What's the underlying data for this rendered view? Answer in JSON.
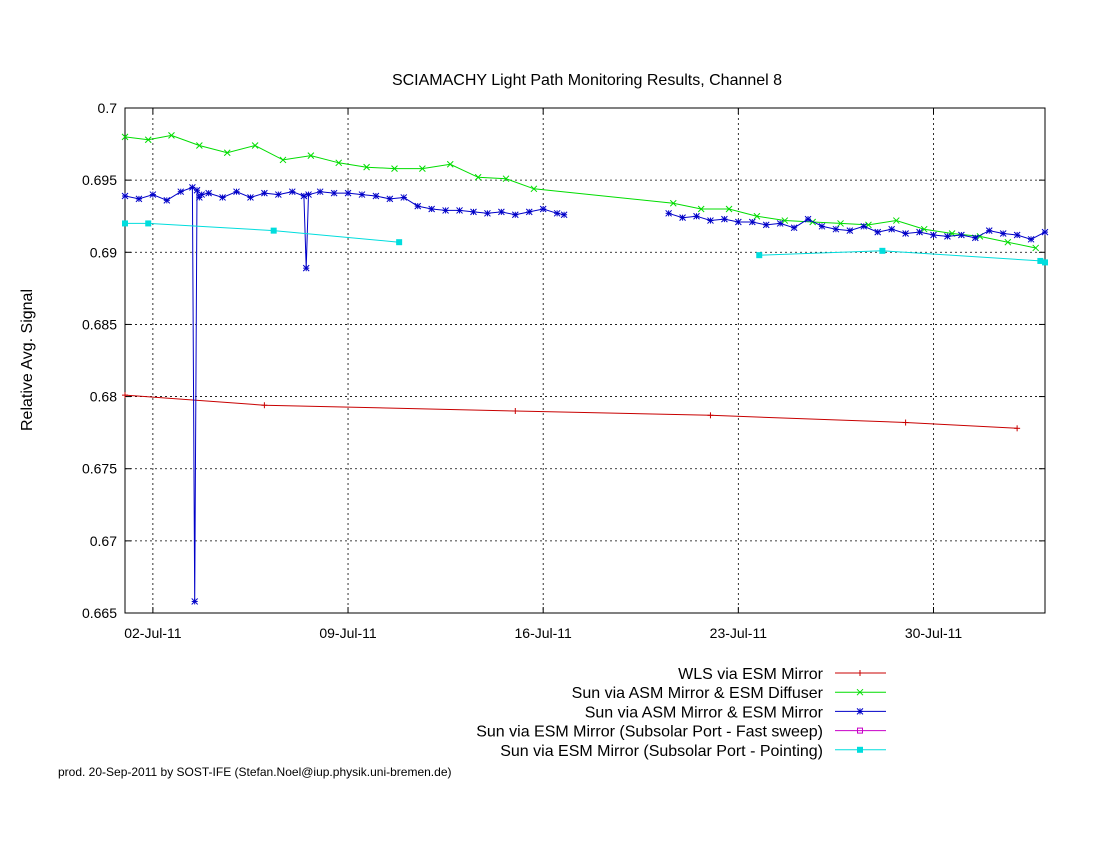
{
  "page": {
    "footer": "prod. 20-Sep-2011 by SOST-IFE (Stefan.Noel@iup.physik.uni-bremen.de)"
  },
  "chart_data": {
    "type": "line",
    "title": "SCIAMACHY Light Path Monitoring Results, Channel 8",
    "xlabel": "",
    "ylabel": "Relative Avg. Signal",
    "xlim": [
      "2011-07-01",
      "2011-08-03"
    ],
    "ylim": [
      0.665,
      0.7
    ],
    "x_ticks": [
      {
        "date": "2011-07-02",
        "label": "02-Jul-11"
      },
      {
        "date": "2011-07-09",
        "label": "09-Jul-11"
      },
      {
        "date": "2011-07-16",
        "label": "16-Jul-11"
      },
      {
        "date": "2011-07-23",
        "label": "23-Jul-11"
      },
      {
        "date": "2011-07-30",
        "label": "30-Jul-11"
      }
    ],
    "y_ticks": [
      0.665,
      0.67,
      0.675,
      0.68,
      0.685,
      0.69,
      0.695,
      0.7
    ],
    "y_tick_labels": [
      "0.665",
      "0.67",
      "0.675",
      "0.68",
      "0.685",
      "0.69",
      "0.695",
      "0.7"
    ],
    "grid": true,
    "legend_position": "bottom-right, below plot",
    "series": [
      {
        "name": "WLS via ESM Mirror",
        "color": "#c80000",
        "marker": "plus",
        "x": [
          "2011-07-01",
          "2011-07-06",
          "2011-07-15",
          "2011-07-22",
          "2011-07-29",
          "2011-08-02"
        ],
        "y": [
          0.6801,
          0.6794,
          0.679,
          0.6787,
          0.6782,
          0.6778
        ]
      },
      {
        "name": "Sun via ASM Mirror & ESM Diffuser",
        "color": "#00dd00",
        "marker": "x",
        "x": [
          "2011-07-01",
          "2011-07-01 20:00",
          "2011-07-02 16:00",
          "2011-07-03 16:00",
          "2011-07-04 16:00",
          "2011-07-05 16:00",
          "2011-07-06 16:00",
          "2011-07-07 16:00",
          "2011-07-08 16:00",
          "2011-07-09 16:00",
          "2011-07-10 16:00",
          "2011-07-11 16:00",
          "2011-07-12 16:00",
          "2011-07-13 16:00",
          "2011-07-14 16:00",
          "2011-07-15 16:00",
          "2011-07-20 16:00",
          "2011-07-21 16:00",
          "2011-07-22 16:00",
          "2011-07-23 16:00",
          "2011-07-24 16:00",
          "2011-07-25 16:00",
          "2011-07-26 16:00",
          "2011-07-27 16:00",
          "2011-07-28 16:00",
          "2011-07-29 16:00",
          "2011-07-30 16:00",
          "2011-07-31 16:00",
          "2011-08-01 16:00",
          "2011-08-02 16:00"
        ],
        "y": [
          0.698,
          0.6978,
          0.6981,
          0.6974,
          0.6969,
          0.6974,
          0.6964,
          0.6967,
          0.6962,
          0.6959,
          0.6958,
          0.6958,
          0.6961,
          0.6952,
          0.6951,
          0.6944,
          0.6934,
          0.693,
          0.693,
          0.6925,
          0.6922,
          0.6921,
          0.692,
          0.6919,
          0.6922,
          0.6916,
          0.6913,
          0.6911,
          0.6907,
          0.6903
        ]
      },
      {
        "name": "Sun via ASM Mirror & ESM Mirror",
        "color": "#0000c8",
        "marker": "star",
        "segments": [
          {
            "x": [
              "2011-07-01",
              "2011-07-01 12:00",
              "2011-07-02",
              "2011-07-02 12:00",
              "2011-07-03",
              "2011-07-03 10:00",
              "2011-07-03 12:00",
              "2011-07-03 14:00",
              "2011-07-03 16:00",
              "2011-07-03 18:00",
              "2011-07-04",
              "2011-07-04 12:00",
              "2011-07-05",
              "2011-07-05 12:00",
              "2011-07-06",
              "2011-07-06 12:00",
              "2011-07-07",
              "2011-07-07 10:00",
              "2011-07-07 12:00",
              "2011-07-07 14:00",
              "2011-07-08",
              "2011-07-08 12:00",
              "2011-07-09",
              "2011-07-09 12:00",
              "2011-07-10",
              "2011-07-10 12:00",
              "2011-07-11",
              "2011-07-11 12:00",
              "2011-07-12",
              "2011-07-12 12:00",
              "2011-07-13",
              "2011-07-13 12:00",
              "2011-07-14",
              "2011-07-14 12:00",
              "2011-07-15",
              "2011-07-15 12:00",
              "2011-07-16",
              "2011-07-16 12:00",
              "2011-07-16 18:00"
            ],
            "y": [
              0.6939,
              0.6937,
              0.694,
              0.6936,
              0.6942,
              0.6945,
              0.6658,
              0.6943,
              0.6938,
              0.694,
              0.6941,
              0.6938,
              0.6942,
              0.6938,
              0.6941,
              0.694,
              0.6942,
              0.6939,
              0.6889,
              0.694,
              0.6942,
              0.6941,
              0.6941,
              0.694,
              0.6939,
              0.6937,
              0.6938,
              0.6932,
              0.693,
              0.6929,
              0.6929,
              0.6928,
              0.6927,
              0.6928,
              0.6926,
              0.6928,
              0.693,
              0.6927,
              0.6926
            ]
          },
          {
            "x": [
              "2011-07-20 12:00",
              "2011-07-21",
              "2011-07-21 12:00",
              "2011-07-22",
              "2011-07-22 12:00",
              "2011-07-23",
              "2011-07-23 12:00",
              "2011-07-24",
              "2011-07-24 12:00",
              "2011-07-25",
              "2011-07-25 12:00",
              "2011-07-26",
              "2011-07-26 12:00",
              "2011-07-27",
              "2011-07-27 12:00",
              "2011-07-28",
              "2011-07-28 12:00",
              "2011-07-29",
              "2011-07-29 12:00",
              "2011-07-30",
              "2011-07-30 12:00",
              "2011-07-31",
              "2011-07-31 12:00",
              "2011-08-01",
              "2011-08-01 12:00",
              "2011-08-02",
              "2011-08-02 12:00",
              "2011-08-03"
            ],
            "y": [
              0.6927,
              0.6924,
              0.6925,
              0.6922,
              0.6923,
              0.6921,
              0.6921,
              0.6919,
              0.692,
              0.6917,
              0.6923,
              0.6918,
              0.6916,
              0.6915,
              0.6918,
              0.6914,
              0.6916,
              0.6913,
              0.6914,
              0.6912,
              0.6911,
              0.6912,
              0.691,
              0.6915,
              0.6913,
              0.6912,
              0.6909,
              0.6914
            ]
          }
        ]
      },
      {
        "name": "Sun via ESM Mirror (Subsolar Port - Fast sweep)",
        "color": "#c800c8",
        "marker": "square-open",
        "x": [],
        "y": []
      },
      {
        "name": "Sun via ESM Mirror (Subsolar Port - Pointing)",
        "color": "#00dddd",
        "marker": "square-filled",
        "segments": [
          {
            "x": [
              "2011-07-01",
              "2011-07-01 20:00",
              "2011-07-06 08:00",
              "2011-07-10 20:00"
            ],
            "y": [
              0.692,
              0.692,
              0.6915,
              0.6907
            ]
          },
          {
            "x": [
              "2011-07-23 18:00",
              "2011-07-28 04:00",
              "2011-08-02 20:00",
              "2011-08-03"
            ],
            "y": [
              0.6898,
              0.6901,
              0.6894,
              0.6893
            ]
          }
        ]
      }
    ]
  }
}
